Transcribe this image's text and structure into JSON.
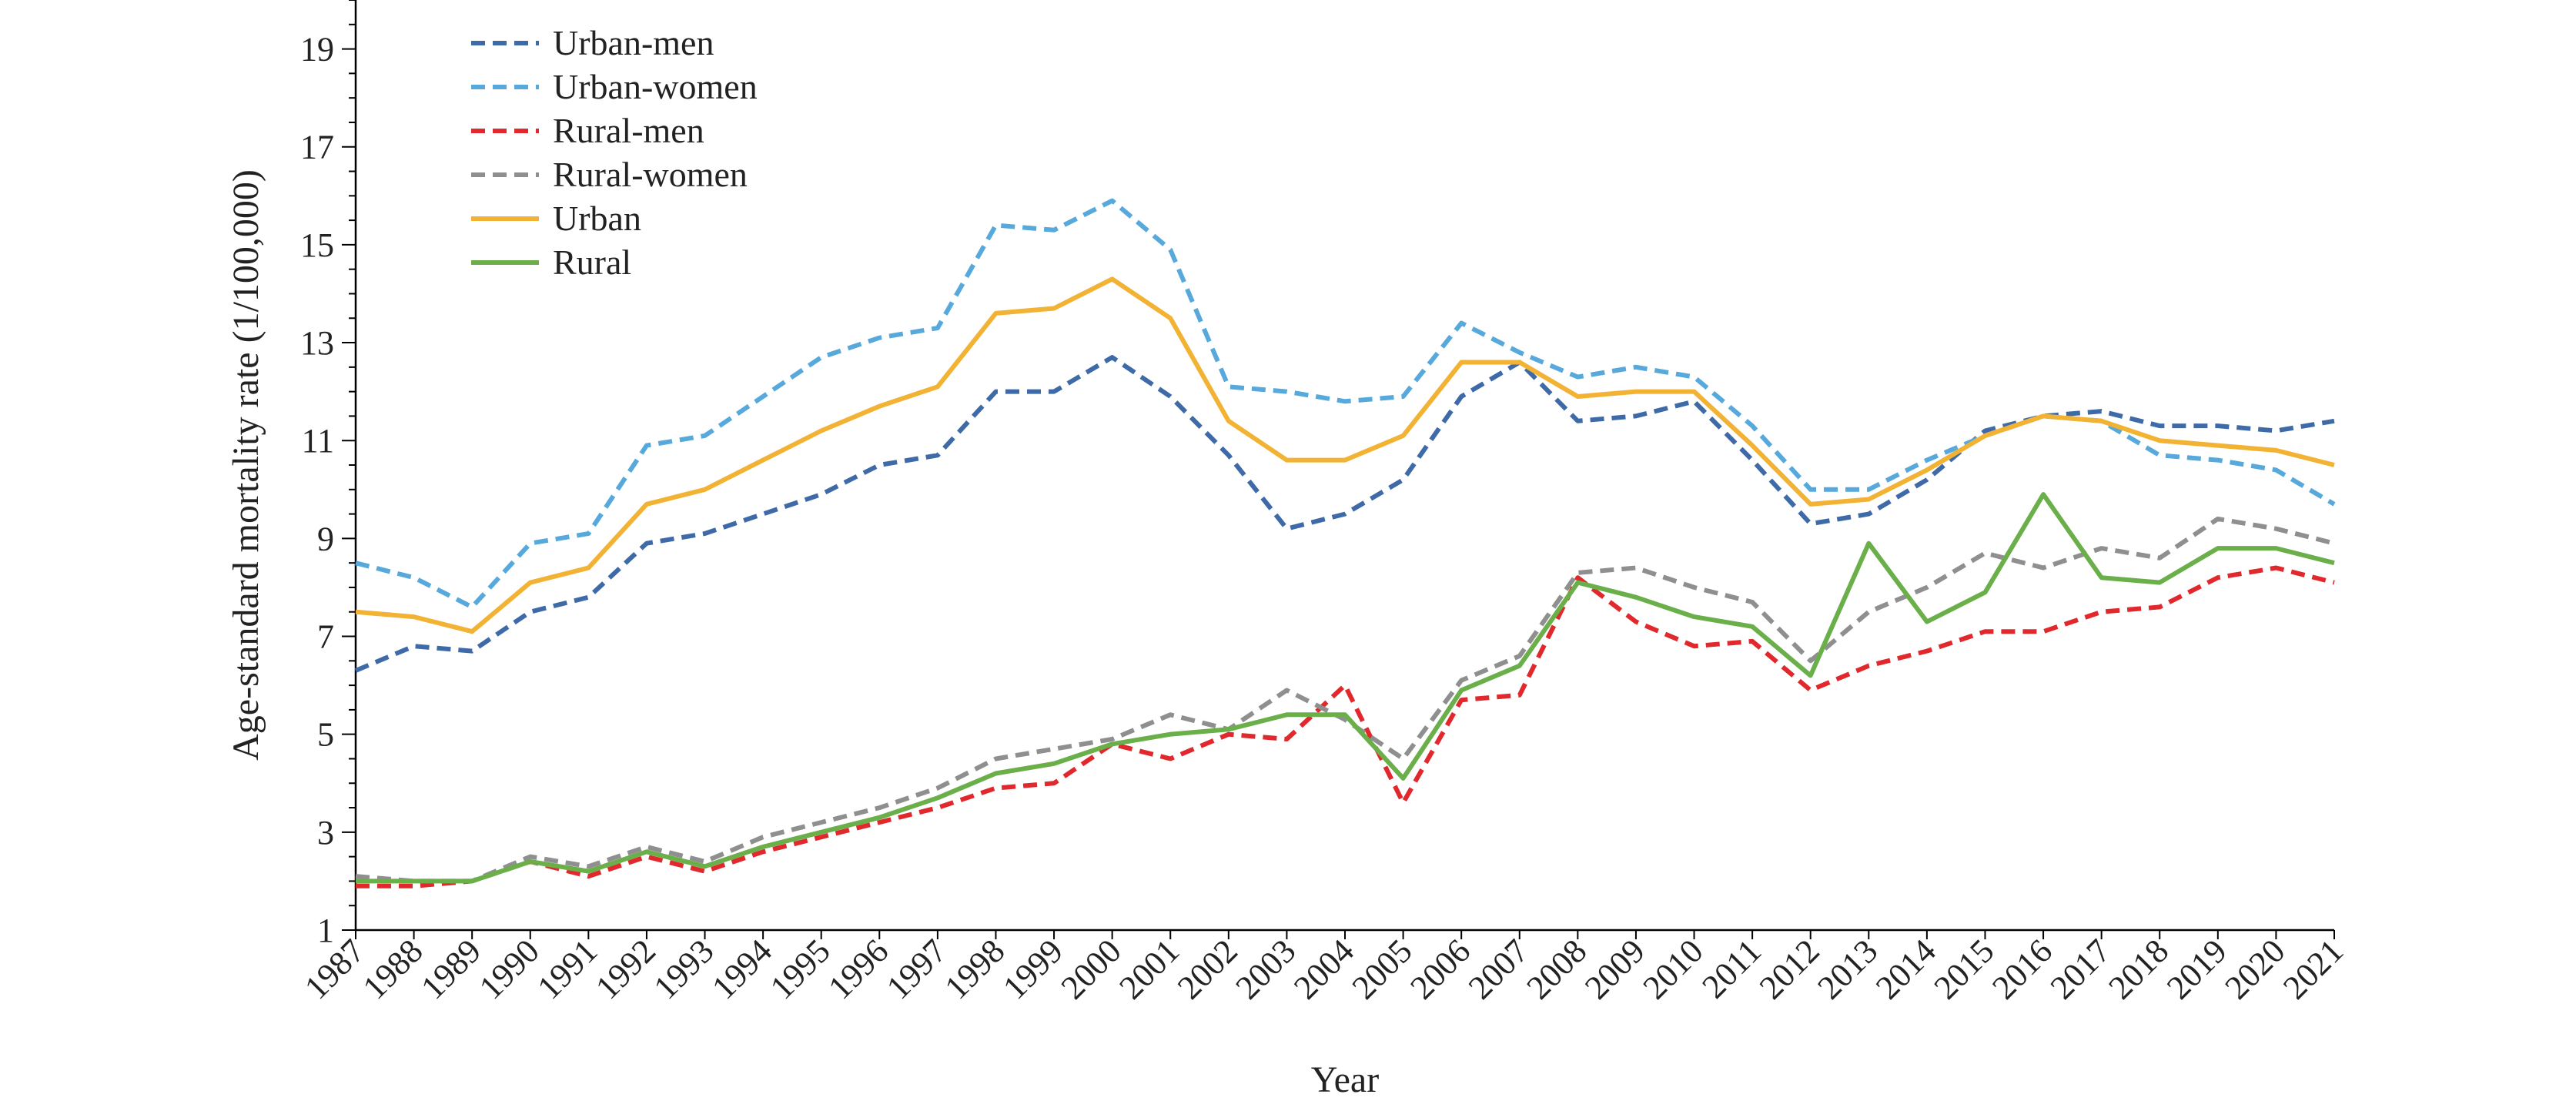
{
  "chart_data": {
    "type": "line",
    "xlabel": "Year",
    "ylabel": "Age-standard mortality rate (1/100,000)",
    "ylim": [
      1,
      20
    ],
    "yticks": [
      1,
      3,
      5,
      7,
      9,
      11,
      13,
      15,
      17,
      19
    ],
    "grid": false,
    "legend_position": "top-left",
    "x": [
      "1987",
      "1988",
      "1989",
      "1990",
      "1991",
      "1992",
      "1993",
      "1994",
      "1995",
      "1996",
      "1997",
      "1998",
      "1999",
      "2000",
      "2001",
      "2002",
      "2003",
      "2004",
      "2005",
      "2006",
      "2007",
      "2008",
      "2009",
      "2010",
      "2011",
      "2012",
      "2013",
      "2014",
      "2015",
      "2016",
      "2017",
      "2018",
      "2019",
      "2020",
      "2021"
    ],
    "series": [
      {
        "name": "Urban-men",
        "style": "dashed",
        "color": "#3f6aa8",
        "values": [
          6.3,
          6.8,
          6.7,
          7.5,
          7.8,
          8.9,
          9.1,
          9.5,
          9.9,
          10.5,
          10.7,
          12.0,
          12.0,
          12.7,
          11.9,
          10.7,
          9.2,
          9.5,
          10.2,
          11.9,
          12.6,
          11.4,
          11.5,
          11.8,
          10.6,
          9.3,
          9.5,
          10.2,
          11.2,
          11.5,
          11.6,
          11.3,
          11.3,
          11.2,
          11.4
        ]
      },
      {
        "name": "Urban-women",
        "style": "dashed",
        "color": "#57a9dc",
        "values": [
          8.5,
          8.2,
          7.6,
          8.9,
          9.1,
          10.9,
          11.1,
          11.9,
          12.7,
          13.1,
          13.3,
          15.4,
          15.3,
          15.9,
          14.9,
          12.1,
          12.0,
          11.8,
          11.9,
          13.4,
          12.8,
          12.3,
          12.5,
          12.3,
          11.3,
          10.0,
          10.0,
          10.6,
          11.1,
          11.5,
          11.4,
          10.7,
          10.6,
          10.4,
          9.7
        ]
      },
      {
        "name": "Rural-men",
        "style": "dashed",
        "color": "#e0282d",
        "values": [
          1.9,
          1.9,
          2.0,
          2.4,
          2.1,
          2.5,
          2.2,
          2.6,
          2.9,
          3.2,
          3.5,
          3.9,
          4.0,
          4.8,
          4.5,
          5.0,
          4.9,
          6.0,
          3.6,
          5.7,
          5.8,
          8.2,
          7.3,
          6.8,
          6.9,
          5.9,
          6.4,
          6.7,
          7.1,
          7.1,
          7.5,
          7.6,
          8.2,
          8.4,
          8.1
        ]
      },
      {
        "name": "Rural-women",
        "style": "dashed",
        "color": "#8f8f8f",
        "values": [
          2.1,
          2.0,
          2.0,
          2.5,
          2.3,
          2.7,
          2.4,
          2.9,
          3.2,
          3.5,
          3.9,
          4.5,
          4.7,
          4.9,
          5.4,
          5.1,
          5.9,
          5.3,
          4.5,
          6.1,
          6.6,
          8.3,
          8.4,
          8.0,
          7.7,
          6.5,
          7.5,
          8.0,
          8.7,
          8.4,
          8.8,
          8.6,
          9.4,
          9.2,
          8.9
        ]
      },
      {
        "name": "Urban",
        "style": "solid",
        "color": "#f2b233",
        "values": [
          7.5,
          7.4,
          7.1,
          8.1,
          8.4,
          9.7,
          10.0,
          10.6,
          11.2,
          11.7,
          12.1,
          13.6,
          13.7,
          14.3,
          13.5,
          11.4,
          10.6,
          10.6,
          11.1,
          12.6,
          12.6,
          11.9,
          12.0,
          12.0,
          10.9,
          9.7,
          9.8,
          10.4,
          11.1,
          11.5,
          11.4,
          11.0,
          10.9,
          10.8,
          10.5
        ]
      },
      {
        "name": "Rural",
        "style": "solid",
        "color": "#6aaf4a",
        "values": [
          2.0,
          2.0,
          2.0,
          2.4,
          2.2,
          2.6,
          2.3,
          2.7,
          3.0,
          3.3,
          3.7,
          4.2,
          4.4,
          4.8,
          5.0,
          5.1,
          5.4,
          5.4,
          4.1,
          5.9,
          6.4,
          8.1,
          7.8,
          7.4,
          7.2,
          6.2,
          8.9,
          7.3,
          7.9,
          9.9,
          8.2,
          8.1,
          8.8,
          8.8,
          8.5
        ]
      }
    ]
  }
}
